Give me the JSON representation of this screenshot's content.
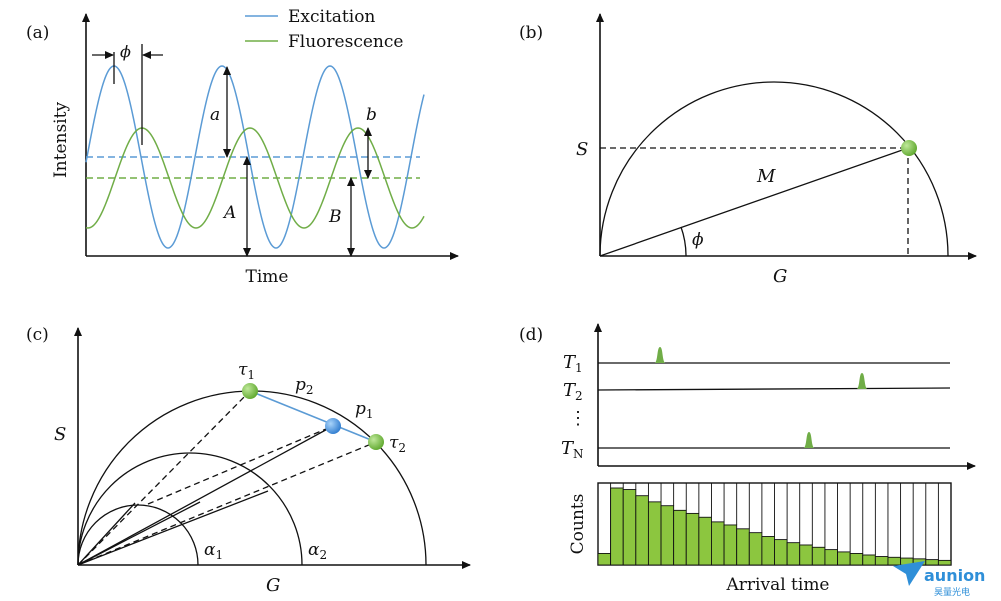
{
  "panels": {
    "a": {
      "label": "(a)",
      "legend": {
        "excitation": "Excitation",
        "fluorescence": "Fluorescence"
      },
      "xlabel": "Time",
      "ylabel": "Intensity",
      "phase": "ϕ",
      "a": "a",
      "A": "A",
      "b": "b",
      "B": "B"
    },
    "b": {
      "label": "(b)",
      "ylabel": "S",
      "xlabel": "G",
      "m": "M",
      "phase": "ϕ"
    },
    "c": {
      "label": "(c)",
      "ylabel": "S",
      "xlabel": "G",
      "tau1": "τ",
      "tau1_sub": "1",
      "tau2": "τ",
      "tau2_sub": "2",
      "p1": "p",
      "p1_sub": "1",
      "p2": "p",
      "p2_sub": "2",
      "alpha1": "α",
      "alpha1_sub": "1",
      "alpha2": "α",
      "alpha2_sub": "2"
    },
    "d": {
      "label": "(d)",
      "t1": "T",
      "t1_sub": "1",
      "t2": "T",
      "t2_sub": "2",
      "dots": "⋮",
      "tn": "T",
      "tn_sub": "N",
      "ylabel": "Counts",
      "xlabel": "Arrival time",
      "histogram_counts": [
        0.15,
        1.0,
        0.98,
        0.9,
        0.82,
        0.77,
        0.71,
        0.67,
        0.62,
        0.56,
        0.52,
        0.47,
        0.42,
        0.37,
        0.33,
        0.29,
        0.26,
        0.23,
        0.2,
        0.17,
        0.15,
        0.13,
        0.11,
        0.1,
        0.09,
        0.08,
        0.07,
        0.06
      ]
    }
  },
  "logo": {
    "text": "aunion",
    "subtext": "昊量光电"
  },
  "colors": {
    "excitation": "#5b9bd5",
    "fluorescence": "#70ad47",
    "marker_green": "#7cc242",
    "marker_blue": "#4a90d9",
    "bar_fill": "#8cc63f",
    "logo": "#2f8fd8"
  }
}
